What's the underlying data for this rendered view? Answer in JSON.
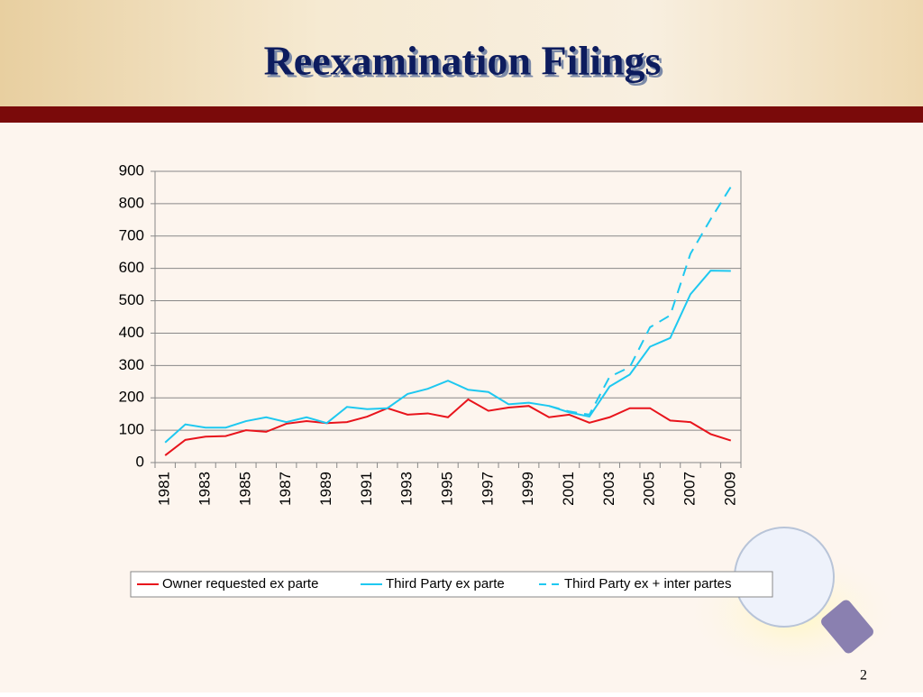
{
  "title": "Reexamination Filings",
  "page_number": "2",
  "chart_data": {
    "type": "line",
    "categories": [
      "1981",
      null,
      "1983",
      null,
      "1985",
      null,
      "1987",
      null,
      "1989",
      null,
      "1991",
      null,
      "1993",
      null,
      "1995",
      null,
      "1997",
      null,
      "1999",
      null,
      "2001",
      null,
      "2003",
      null,
      "2005",
      null,
      "2007",
      null,
      "2009"
    ],
    "series": [
      {
        "name": "Owner requested ex parte",
        "color": "#e8141c",
        "dash": false,
        "values": [
          22,
          70,
          80,
          82,
          100,
          95,
          120,
          128,
          122,
          125,
          142,
          168,
          148,
          152,
          140,
          195,
          160,
          170,
          175,
          140,
          148,
          123,
          140,
          168,
          168,
          130,
          125,
          88,
          68
        ]
      },
      {
        "name": "Third Party ex parte",
        "color": "#1ec8f0",
        "dash": false,
        "values": [
          62,
          118,
          108,
          108,
          128,
          140,
          125,
          140,
          122,
          172,
          165,
          168,
          212,
          228,
          253,
          225,
          218,
          180,
          185,
          175,
          155,
          142,
          235,
          272,
          358,
          385,
          520,
          593,
          592
        ]
      },
      {
        "name": "Third Party ex + inter partes",
        "color": "#1ec8f0",
        "dash": true,
        "values": [
          null,
          null,
          null,
          null,
          null,
          null,
          null,
          null,
          null,
          null,
          null,
          null,
          null,
          null,
          null,
          null,
          null,
          null,
          null,
          175,
          158,
          148,
          265,
          295,
          418,
          455,
          645,
          752,
          852
        ]
      }
    ],
    "ylim": [
      0,
      900
    ],
    "yticks": [
      0,
      100,
      200,
      300,
      400,
      500,
      600,
      700,
      800,
      900
    ],
    "grid": true,
    "legend": "bottom"
  }
}
